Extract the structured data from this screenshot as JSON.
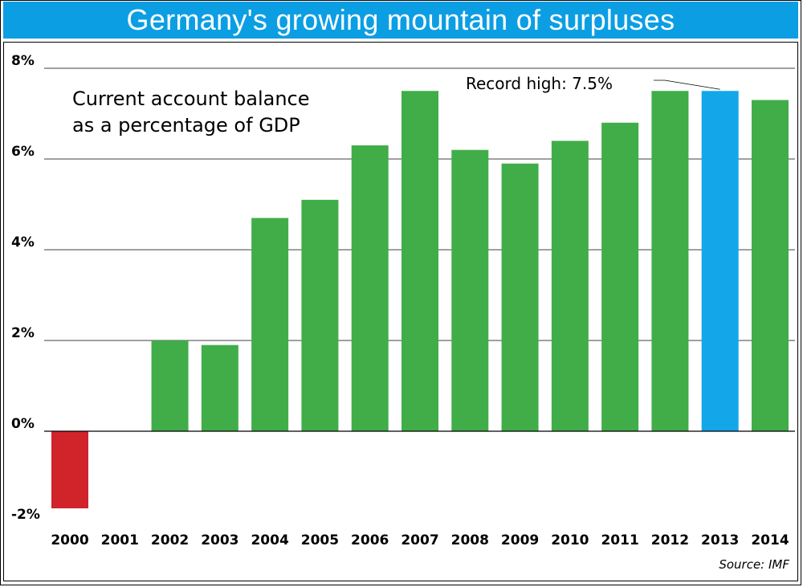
{
  "title": "Germany's growing mountain of surpluses",
  "colors": {
    "title_bg": "#0c9ee3",
    "positive": "#41ad49",
    "negative": "#d1232a",
    "highlight": "#13a7ea"
  },
  "annotation": {
    "line1": "Current account balance",
    "line2": "as a percentage of GDP"
  },
  "record_label": "Record high: 7.5%",
  "source": "Source: IMF",
  "chart_data": {
    "type": "bar",
    "title": "Germany's growing mountain of surpluses",
    "subtitle": "Current account balance as a percentage of GDP",
    "xlabel": "",
    "ylabel": "",
    "categories": [
      "2000",
      "2001",
      "2002",
      "2003",
      "2004",
      "2005",
      "2006",
      "2007",
      "2008",
      "2009",
      "2010",
      "2011",
      "2012",
      "2013",
      "2014"
    ],
    "values": [
      -1.7,
      0.0,
      2.0,
      1.9,
      4.7,
      5.1,
      6.3,
      7.5,
      6.2,
      5.9,
      6.4,
      6.8,
      7.5,
      7.5,
      7.3
    ],
    "highlight_index": 13,
    "ylim": [
      -2,
      8
    ],
    "yticks": [
      8,
      6,
      4,
      2,
      0,
      -2
    ],
    "ytick_labels": [
      "8%",
      "6%",
      "4%",
      "2%",
      "0%",
      "-2%"
    ],
    "grid": true,
    "legend": "none"
  }
}
